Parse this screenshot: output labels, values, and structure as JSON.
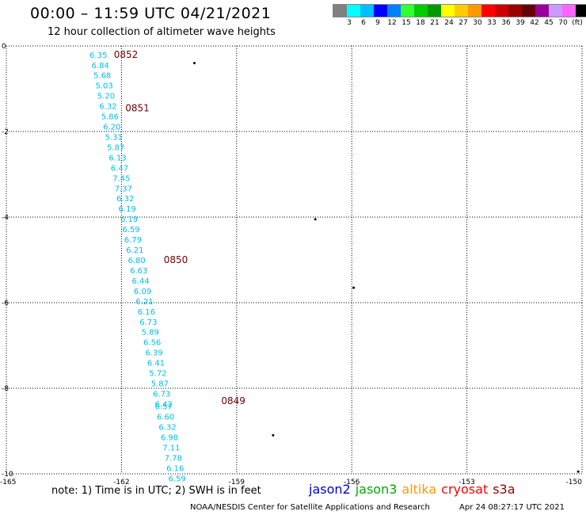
{
  "header": {
    "title": "00:00 – 11:59 UTC 04/21/2021",
    "subtitle": "12 hour collection of altimeter wave heights"
  },
  "legend": {
    "colors": [
      "#808080",
      "#00ffff",
      "#00bfff",
      "#0000ff",
      "#0080ff",
      "#33ff33",
      "#00cc00",
      "#009900",
      "#ffff00",
      "#ffcc00",
      "#ff9900",
      "#ff0000",
      "#cc0000",
      "#990000",
      "#660000",
      "#990099",
      "#cc99ff",
      "#ff66ff",
      "#000000"
    ],
    "labels": [
      "3",
      "6",
      "9",
      "12",
      "15",
      "18",
      "21",
      "24",
      "27",
      "30",
      "33",
      "36",
      "39",
      "42",
      "45",
      "70",
      "(ft)"
    ],
    "label_colors": [
      "#808080",
      "#00ffff",
      "#00bfff",
      "#0000ff",
      "#0080ff",
      "#33ff33",
      "#00cc00",
      "#009900",
      "#ffff00",
      "#ffcc00",
      "#ff9900",
      "#ff0000",
      "#cc0000",
      "#990000",
      "#660000",
      "#990099",
      "#cc99ff"
    ]
  },
  "map": {
    "lon_min": -165,
    "lon_max": -150,
    "lat_min": -10,
    "lat_max": 0,
    "lon_ticks": [
      {
        "value": -165,
        "label": "-165"
      },
      {
        "value": -162,
        "label": "-162"
      },
      {
        "value": -159,
        "label": "-159"
      },
      {
        "value": -156,
        "label": "-156"
      },
      {
        "value": -153,
        "label": "-153"
      },
      {
        "value": -150,
        "label": "-150"
      }
    ],
    "lat_ticks": [
      {
        "value": 0,
        "label": "0"
      },
      {
        "value": -2,
        "label": "-2"
      },
      {
        "value": -4,
        "label": "-4"
      },
      {
        "value": -6,
        "label": "-6"
      },
      {
        "value": -8,
        "label": "-8"
      },
      {
        "value": -10,
        "label": "-10"
      }
    ],
    "swh_track": [
      {
        "lon": -162.6,
        "lat": -0.2,
        "swh": "6.35"
      },
      {
        "lon": -162.55,
        "lat": -0.44,
        "swh": "6.84"
      },
      {
        "lon": -162.5,
        "lat": -0.68,
        "swh": "5.68"
      },
      {
        "lon": -162.45,
        "lat": -0.92,
        "swh": "5.03"
      },
      {
        "lon": -162.4,
        "lat": -1.16,
        "swh": "5.20"
      },
      {
        "lon": -162.35,
        "lat": -1.4,
        "swh": "6.32"
      },
      {
        "lon": -162.3,
        "lat": -1.64,
        "swh": "5.86"
      },
      {
        "lon": -162.25,
        "lat": -1.88,
        "swh": "6.20"
      },
      {
        "lon": -162.2,
        "lat": -2.12,
        "swh": "5.31"
      },
      {
        "lon": -162.15,
        "lat": -2.36,
        "swh": "5.87"
      },
      {
        "lon": -162.1,
        "lat": -2.6,
        "swh": "6.13"
      },
      {
        "lon": -162.05,
        "lat": -2.84,
        "swh": "6.47"
      },
      {
        "lon": -162.0,
        "lat": -3.08,
        "swh": "7.45"
      },
      {
        "lon": -161.95,
        "lat": -3.32,
        "swh": "7.37"
      },
      {
        "lon": -161.9,
        "lat": -3.56,
        "swh": "6.32"
      },
      {
        "lon": -161.85,
        "lat": -3.8,
        "swh": "6.19"
      },
      {
        "lon": -161.8,
        "lat": -4.04,
        "swh": "6.19"
      },
      {
        "lon": -161.75,
        "lat": -4.28,
        "swh": "6.59"
      },
      {
        "lon": -161.7,
        "lat": -4.52,
        "swh": "6.79"
      },
      {
        "lon": -161.65,
        "lat": -4.76,
        "swh": "6.21"
      },
      {
        "lon": -161.6,
        "lat": -5.0,
        "swh": "6.80"
      },
      {
        "lon": -161.55,
        "lat": -5.24,
        "swh": "6.63"
      },
      {
        "lon": -161.5,
        "lat": -5.48,
        "swh": "6.44"
      },
      {
        "lon": -161.45,
        "lat": -5.72,
        "swh": "6.09"
      },
      {
        "lon": -161.4,
        "lat": -5.96,
        "swh": "6.21"
      },
      {
        "lon": -161.35,
        "lat": -6.2,
        "swh": "6.16"
      },
      {
        "lon": -161.3,
        "lat": -6.44,
        "swh": "6.73"
      },
      {
        "lon": -161.25,
        "lat": -6.68,
        "swh": "5.89"
      },
      {
        "lon": -161.2,
        "lat": -6.92,
        "swh": "6.56"
      },
      {
        "lon": -161.15,
        "lat": -7.16,
        "swh": "6.39"
      },
      {
        "lon": -161.1,
        "lat": -7.4,
        "swh": "6.41"
      },
      {
        "lon": -161.05,
        "lat": -7.64,
        "swh": "5.72"
      },
      {
        "lon": -161.0,
        "lat": -7.88,
        "swh": "5.87"
      },
      {
        "lon": -160.95,
        "lat": -8.12,
        "swh": "6.73"
      },
      {
        "lon": -160.9,
        "lat": -8.36,
        "swh": "6.42"
      },
      {
        "lon": -160.9,
        "lat": -8.42,
        "swh": "6.57"
      },
      {
        "lon": -160.85,
        "lat": -8.66,
        "swh": "6.60"
      },
      {
        "lon": -160.8,
        "lat": -8.9,
        "swh": "6.32"
      },
      {
        "lon": -160.75,
        "lat": -9.14,
        "swh": "6.98"
      },
      {
        "lon": -160.7,
        "lat": -9.38,
        "swh": "7.11"
      },
      {
        "lon": -160.65,
        "lat": -9.62,
        "swh": "7.78"
      },
      {
        "lon": -160.6,
        "lat": -9.86,
        "swh": "6.16"
      },
      {
        "lon": -160.55,
        "lat": -10.1,
        "swh": "6.59"
      }
    ],
    "orbit_times": [
      {
        "lon": -162.2,
        "lat": -0.2,
        "label": "0852"
      },
      {
        "lon": -161.9,
        "lat": -1.45,
        "label": "0851"
      },
      {
        "lon": -160.9,
        "lat": -5.0,
        "label": "0850"
      },
      {
        "lon": -159.4,
        "lat": -8.3,
        "label": "0849"
      }
    ],
    "islands": [
      {
        "lon": -160.1,
        "lat": -0.4
      },
      {
        "lon": -156.95,
        "lat": -4.05
      },
      {
        "lon": -155.95,
        "lat": -5.65
      },
      {
        "lon": -158.05,
        "lat": -9.1
      },
      {
        "lon": -150.1,
        "lat": -9.95
      }
    ]
  },
  "footer": {
    "note": "note:  1) Time is in UTC;  2) SWH is in feet",
    "satellites": [
      {
        "name": "jason2",
        "color": "#0000cc"
      },
      {
        "name": "jason3",
        "color": "#00aa00"
      },
      {
        "name": "altika",
        "color": "#ff9900"
      },
      {
        "name": "cryosat",
        "color": "#ff0000"
      },
      {
        "name": "s3a",
        "color": "#990000"
      }
    ],
    "credit": "NOAA/NESDIS Center for Satellite Applications and Research",
    "date": "Apr 24 08:27:17 UTC 2021"
  }
}
